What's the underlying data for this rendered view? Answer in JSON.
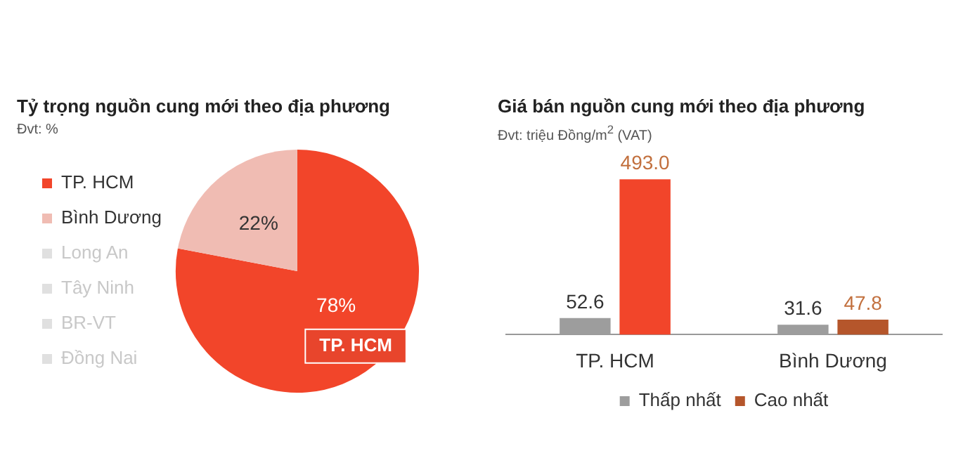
{
  "chart_data": [
    {
      "type": "pie",
      "title": "Tỷ trọng nguồn cung mới theo địa phương",
      "subtitle": "Đvt: %",
      "categories": [
        "TP. HCM",
        "Bình Dương",
        "Long An",
        "Tây Ninh",
        "BR-VT",
        "Đồng Nai"
      ],
      "values": [
        78,
        22,
        0,
        0,
        0,
        0
      ],
      "colors": [
        "#f2452a",
        "#f0bcb3",
        "#e0e0e0",
        "#e0e0e0",
        "#e0e0e0",
        "#e0e0e0"
      ],
      "value_labels": [
        "78%",
        "22%",
        null,
        null,
        null,
        null
      ],
      "annotations": [
        "TP. HCM"
      ],
      "legend": "left"
    },
    {
      "type": "bar",
      "title": "Giá bán nguồn cung mới theo địa phương",
      "subtitle": "Đvt: triệu Đồng/m$^{2}$ (VAT)",
      "categories": [
        "TP. HCM",
        "Bình Dương"
      ],
      "series": [
        {
          "name": "Thấp nhất",
          "color": "#9d9d9d",
          "values": [
            52.6,
            31.6
          ],
          "value_labels": [
            "52.6",
            "31.6"
          ]
        },
        {
          "name": "Cao nhất",
          "color": "#b5562b",
          "colors": [
            "#f2452a",
            "#b5562b"
          ],
          "values": [
            493.0,
            47.8
          ],
          "value_labels": [
            "493.0",
            "47.8"
          ]
        }
      ],
      "legend": "bottom"
    }
  ]
}
